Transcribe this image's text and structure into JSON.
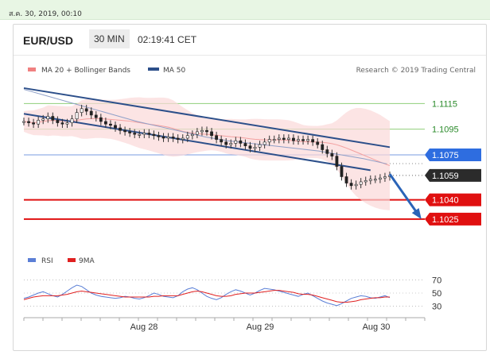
{
  "timestamp": "ส.ค. 30, 2019, 00:10",
  "header": {
    "pair": "EUR/USD",
    "timeframe": "30 MIN",
    "clock": "02:19:41 CET"
  },
  "legend": {
    "ma20_bb": "MA 20 + Bollinger Bands",
    "ma50": "MA 50",
    "credit": "Research © 2019 Trading Central",
    "ma20_color": "#f08080",
    "ma50_color": "#2c4f8a"
  },
  "rsi_legend": {
    "rsi": "RSI",
    "ma9": "9MA",
    "rsi_color": "#5b7fd6",
    "ma9_color": "#e02020"
  },
  "chart_data": [
    {
      "type": "line",
      "subtype": "candlestick",
      "title": "",
      "x_ticks": [
        "Aug 28",
        "Aug 29",
        "Aug 30"
      ],
      "y_levels": [
        {
          "value": 1.1115,
          "label": "1.1115",
          "style": "green-line"
        },
        {
          "value": 1.1095,
          "label": "1.1095",
          "style": "green-line"
        },
        {
          "value": 1.1075,
          "label": "1.1075",
          "style": "blue-badge"
        },
        {
          "value": 1.1059,
          "label": "1.1059",
          "style": "current-price-badge"
        },
        {
          "value": 1.104,
          "label": "1.1040",
          "style": "red-badge"
        },
        {
          "value": 1.1025,
          "label": "1.1025",
          "style": "red-badge"
        }
      ],
      "ylim": [
        1.1015,
        1.1135
      ],
      "series": [
        {
          "name": "Price",
          "close": [
            1.1101,
            1.11,
            1.1099,
            1.1102,
            1.1103,
            1.1105,
            1.1102,
            1.11,
            1.1099,
            1.11,
            1.1103,
            1.1108,
            1.1111,
            1.1109,
            1.1106,
            1.1104,
            1.1101,
            1.1099,
            1.1098,
            1.1096,
            1.1094,
            1.1093,
            1.1092,
            1.1091,
            1.1091,
            1.1092,
            1.1091,
            1.109,
            1.1089,
            1.1088,
            1.1089,
            1.1088,
            1.1087,
            1.1088,
            1.109,
            1.1091,
            1.1093,
            1.1094,
            1.1093,
            1.109,
            1.1087,
            1.1085,
            1.1083,
            1.1084,
            1.1086,
            1.1084,
            1.1082,
            1.108,
            1.1081,
            1.1083,
            1.1085,
            1.1087,
            1.1087,
            1.1088,
            1.1087,
            1.1088,
            1.1086,
            1.1087,
            1.1086,
            1.1087,
            1.1085,
            1.1083,
            1.1079,
            1.1076,
            1.1074,
            1.1066,
            1.1058,
            1.1053,
            1.1051,
            1.1052,
            1.1054,
            1.1055,
            1.1056,
            1.1056,
            1.1057,
            1.1058,
            1.1059
          ]
        },
        {
          "name": "MA 50",
          "values": [
            1.1126,
            1.1121,
            1.1116,
            1.1111,
            1.1106,
            1.1101,
            1.1097,
            1.1093,
            1.1089,
            1.1086,
            1.1084,
            1.1082,
            1.108,
            1.1078,
            1.1075,
            1.1072,
            1.1068
          ]
        },
        {
          "name": "Trend channel upper",
          "line": [
            [
              0,
              1.1127
            ],
            [
              76,
              1.1081
            ]
          ]
        },
        {
          "name": "Trend channel lower",
          "line": [
            [
              0,
              1.1107
            ],
            [
              72,
              1.1063
            ]
          ]
        },
        {
          "name": "Forecast arrow",
          "line": [
            [
              76,
              1.106
            ],
            [
              82,
              1.1028
            ]
          ]
        }
      ]
    },
    {
      "type": "line",
      "title": "",
      "ylim": [
        20,
        80
      ],
      "y_ticks": [
        30,
        50,
        70
      ],
      "series": [
        {
          "name": "RSI",
          "values": [
            42,
            44,
            47,
            50,
            52,
            49,
            46,
            44,
            48,
            53,
            58,
            62,
            60,
            55,
            50,
            47,
            45,
            44,
            43,
            42,
            43,
            45,
            44,
            42,
            41,
            43,
            46,
            50,
            48,
            45,
            44,
            43,
            46,
            52,
            56,
            58,
            55,
            50,
            45,
            42,
            40,
            43,
            48,
            52,
            55,
            53,
            50,
            47,
            50,
            54,
            57,
            56,
            55,
            53,
            51,
            49,
            47,
            45,
            48,
            50,
            46,
            42,
            38,
            35,
            33,
            31,
            34,
            38,
            42,
            44,
            46,
            45,
            43,
            42,
            44,
            46,
            43
          ]
        },
        {
          "name": "9MA",
          "values": [
            40,
            42,
            44,
            45,
            46,
            46,
            46,
            46,
            47,
            48,
            50,
            52,
            53,
            52,
            51,
            50,
            49,
            48,
            47,
            46,
            45,
            44,
            44,
            44,
            44,
            44,
            44,
            45,
            45,
            46,
            46,
            46,
            46,
            48,
            50,
            52,
            53,
            52,
            50,
            48,
            46,
            45,
            45,
            46,
            48,
            49,
            50,
            50,
            50,
            51,
            52,
            53,
            54,
            54,
            53,
            52,
            51,
            49,
            48,
            48,
            47,
            45,
            43,
            41,
            39,
            37,
            36,
            36,
            37,
            38,
            40,
            41,
            42,
            43,
            43,
            44,
            44
          ]
        }
      ]
    }
  ]
}
